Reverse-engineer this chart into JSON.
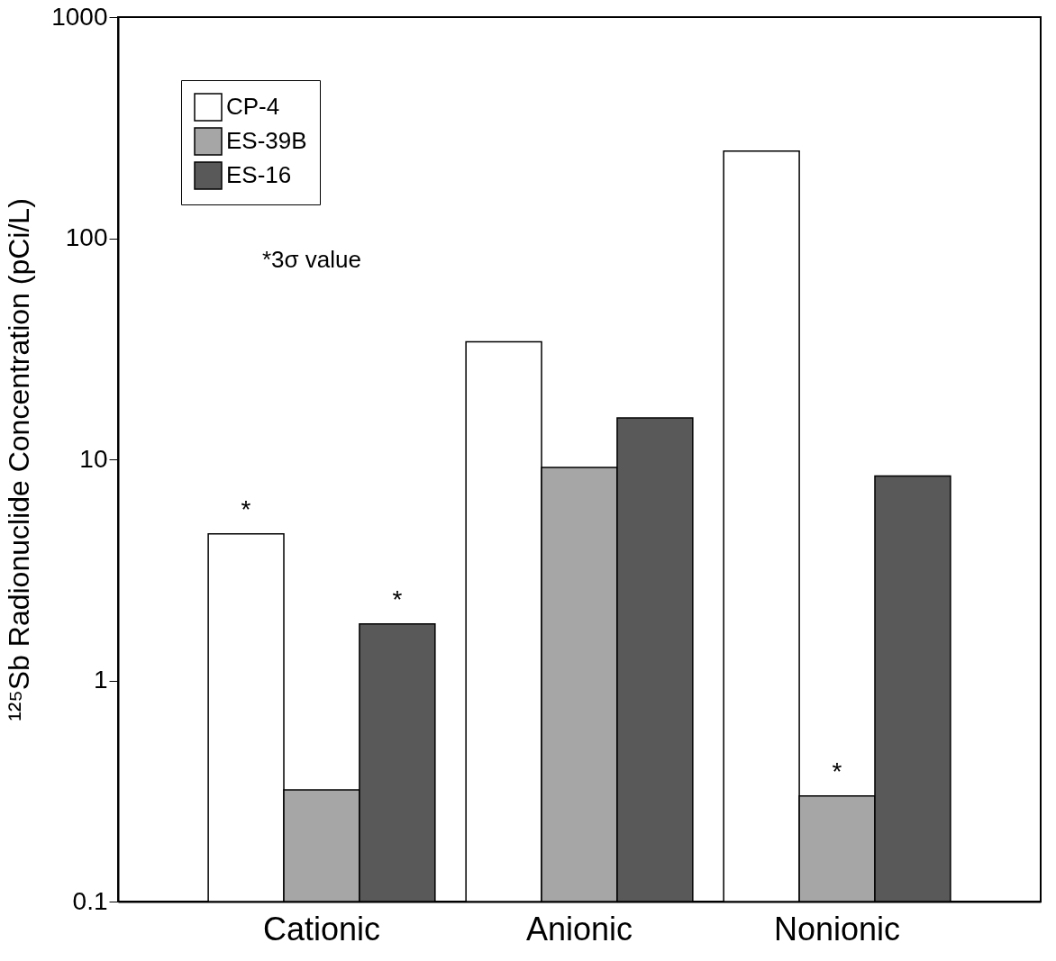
{
  "chart_data": {
    "type": "bar",
    "ylabel": "¹²⁵Sb Radionuclide Concentration (pCi/L)",
    "categories": [
      "Cationic",
      "Anionic",
      "Nonionic"
    ],
    "series": [
      {
        "name": "CP-4",
        "color": "#ffffff",
        "values": [
          4.6,
          34,
          248
        ],
        "value_labels": [
          "*",
          null,
          null
        ]
      },
      {
        "name": "ES-39B",
        "color": "#a6a6a6",
        "values": [
          0.32,
          9.2,
          0.3
        ],
        "value_labels": [
          null,
          null,
          "*"
        ]
      },
      {
        "name": "ES-16",
        "color": "#595959",
        "values": [
          1.8,
          15.4,
          8.4
        ],
        "value_labels": [
          "*",
          null,
          null
        ]
      }
    ],
    "log": true,
    "ylim": [
      0.1,
      1000
    ],
    "yticks": [
      0.1,
      1,
      10,
      100,
      1000
    ],
    "legend": "top left",
    "grid": false,
    "annotations": [
      "*3σ value"
    ]
  }
}
